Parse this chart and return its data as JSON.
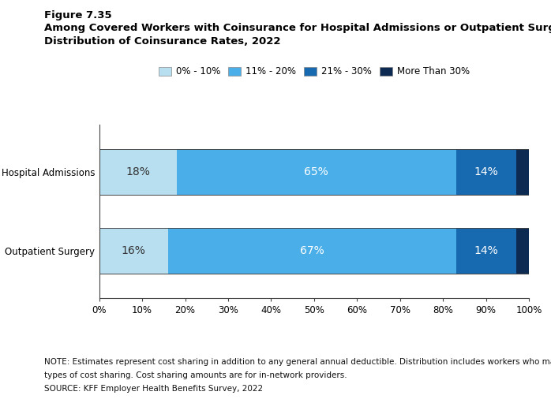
{
  "figure_label": "Figure 7.35",
  "title_line1": "Among Covered Workers with Coinsurance for Hospital Admissions or Outpatient Surgery,",
  "title_line2": "Distribution of Coinsurance Rates, 2022",
  "categories": [
    "Hospital Admissions",
    "Outpatient Surgery"
  ],
  "segments": [
    {
      "label": "0% - 10%",
      "values": [
        18,
        16
      ],
      "color": "#b8dff0"
    },
    {
      "label": "11% - 20%",
      "values": [
        65,
        67
      ],
      "color": "#4aaee8"
    },
    {
      "label": "21% - 30%",
      "values": [
        14,
        14
      ],
      "color": "#1769b0"
    },
    {
      "label": "More Than 30%",
      "values": [
        3,
        3
      ],
      "color": "#0c2a52"
    }
  ],
  "note_line1": "NOTE: Estimates represent cost sharing in addition to any general annual deductible. Distribution includes workers who may have a combination of",
  "note_line2": "types of cost sharing. Cost sharing amounts are for in-network providers.",
  "note_line3": "SOURCE: KFF Employer Health Benefits Survey, 2022",
  "bar_height": 0.58,
  "xlim": [
    0,
    100
  ],
  "xticks": [
    0,
    10,
    20,
    30,
    40,
    50,
    60,
    70,
    80,
    90,
    100
  ],
  "background_color": "#ffffff"
}
